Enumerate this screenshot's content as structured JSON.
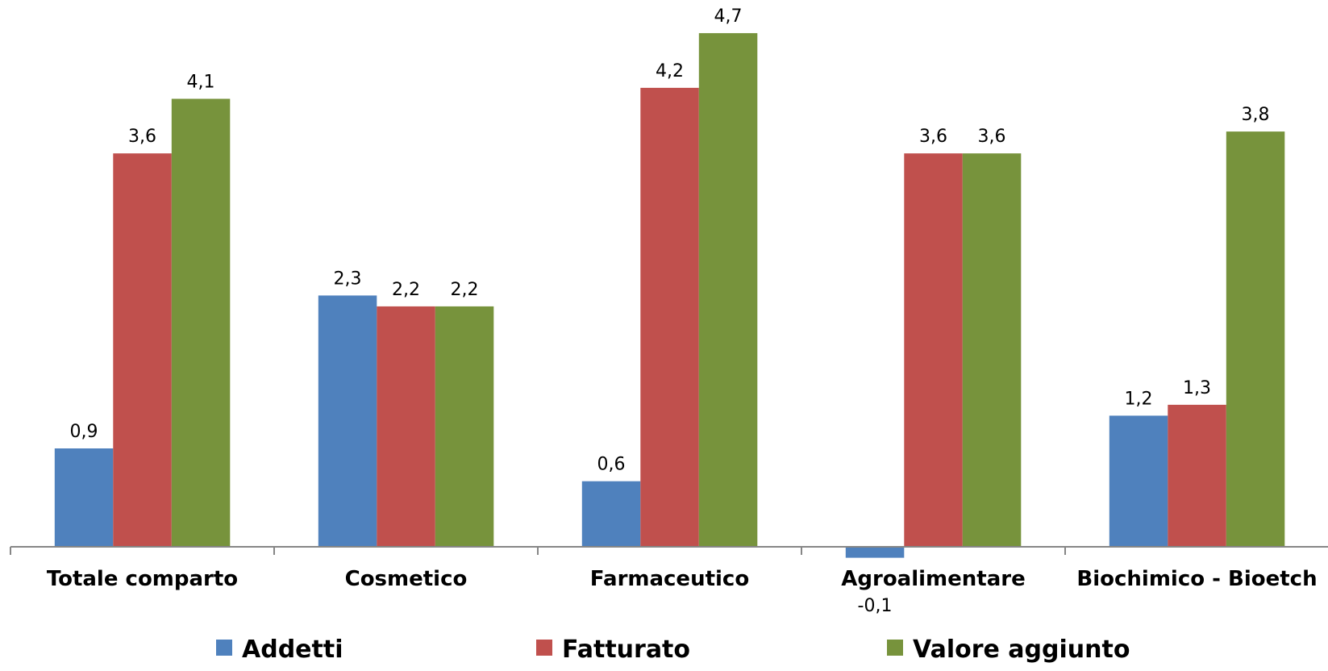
{
  "chart_data": {
    "type": "bar",
    "categories": [
      "Totale comparto",
      "Cosmetico",
      "Farmaceutico",
      "Agroalimentare",
      "Biochimico - Bioetch"
    ],
    "series": [
      {
        "name": "Addetti",
        "values": [
          0.9,
          2.3,
          0.6,
          -0.1,
          1.2
        ],
        "labels": [
          "0,9",
          "2,3",
          "0,6",
          "-0,1",
          "1,2"
        ],
        "color": "#4F81BD"
      },
      {
        "name": "Fatturato",
        "values": [
          3.6,
          2.2,
          4.2,
          3.6,
          1.3
        ],
        "labels": [
          "3,6",
          "2,2",
          "4,2",
          "3,6",
          "1,3"
        ],
        "color": "#C0504D"
      },
      {
        "name": "Valore aggiunto",
        "values": [
          4.1,
          2.2,
          4.7,
          3.6,
          3.8
        ],
        "labels": [
          "4,1",
          "2,2",
          "4,7",
          "3,6",
          "3,8"
        ],
        "color": "#77933C"
      }
    ],
    "ylim": [
      -0.1,
      4.7
    ],
    "grid": false,
    "legend_position": "bottom",
    "title": "",
    "xlabel": "",
    "ylabel": ""
  }
}
